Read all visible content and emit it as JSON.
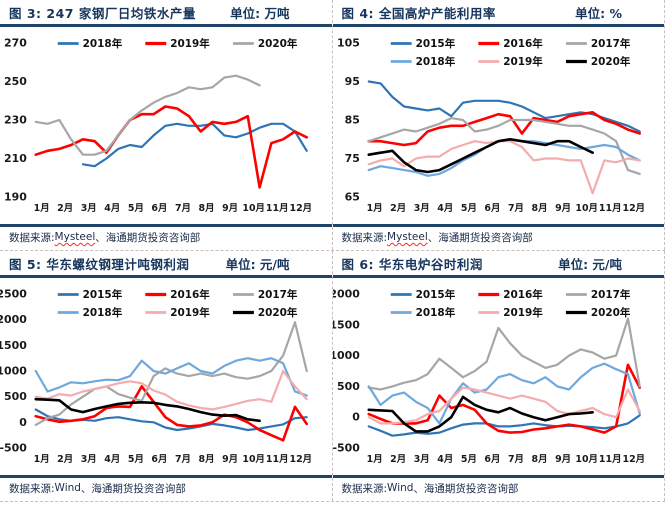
{
  "colors": {
    "navy_rule": "#1f4468",
    "title_text": "#17365d",
    "dashed_border": "#c9bdbd",
    "spellcheck_underline": "#ff2a2a",
    "year_2015": "#2e75b6",
    "year_2016": "#ff0000",
    "year_2017": "#a6a6a6",
    "year_2018_light": "#6fa8dc",
    "year_2019_pink": "#f4acac",
    "year_2020_black": "#000000"
  },
  "chart_data": [
    {
      "type": "line",
      "title": "图 3: 247 家钢厂日均铁水产量",
      "unit": "单位: 万吨",
      "source_prefix": "数据来源: ",
      "source_brand": "Mysteel",
      "source_suffix": "、海通期货投资咨询部",
      "brand_misspelled": true,
      "categories": [
        "1月",
        "2月",
        "3月",
        "4月",
        "5月",
        "6月",
        "7月",
        "8月",
        "9月",
        "10月",
        "11月",
        "12月"
      ],
      "ylim": [
        190,
        270
      ],
      "yticks": [
        270,
        250,
        230,
        210,
        190
      ],
      "grid": false,
      "legend_position": "top-inside",
      "series": [
        {
          "name": "2018年",
          "color": "#2e75b6",
          "width": 2.2,
          "values": [
            null,
            null,
            null,
            null,
            207,
            206,
            210,
            215,
            217,
            216,
            222,
            227,
            228,
            227,
            227,
            228,
            222,
            221,
            223,
            226,
            228,
            228,
            224,
            214
          ]
        },
        {
          "name": "2019年",
          "color": "#ff0000",
          "width": 2.6,
          "values": [
            212,
            214,
            215,
            217,
            220,
            219,
            213,
            222,
            230,
            233,
            233,
            237,
            236,
            232,
            224,
            229,
            228,
            229,
            232,
            195,
            218,
            220,
            224,
            221
          ]
        },
        {
          "name": "2020年",
          "color": "#a6a6a6",
          "width": 2.2,
          "values": [
            229,
            228,
            230,
            220,
            212,
            212,
            214,
            222,
            230,
            235,
            239,
            242,
            244,
            247,
            246,
            247,
            252,
            253,
            251,
            248,
            null,
            null,
            null,
            null
          ]
        }
      ]
    },
    {
      "type": "line",
      "title": "图 4: 全国高炉产能利用率",
      "unit": "单位: %",
      "source_prefix": "数据来源: ",
      "source_brand": "Mysteel",
      "source_suffix": "、海通期货投资咨询部",
      "brand_misspelled": true,
      "categories": [
        "1月",
        "2月",
        "3月",
        "4月",
        "5月",
        "6月",
        "7月",
        "8月",
        "9月",
        "10月",
        "11月",
        "12月"
      ],
      "ylim": [
        65,
        105
      ],
      "yticks": [
        105,
        95,
        85,
        75,
        65
      ],
      "grid": false,
      "legend_position": "top-inside",
      "series": [
        {
          "name": "2015年",
          "color": "#2e75b6",
          "width": 2.2,
          "values": [
            95,
            94.5,
            91,
            88.5,
            88,
            87.5,
            88,
            86,
            89.5,
            90,
            90,
            90,
            89.5,
            88.5,
            87,
            85.5,
            86,
            86.5,
            87,
            86.5,
            85.5,
            84.5,
            83.5,
            82
          ]
        },
        {
          "name": "2016年",
          "color": "#ff0000",
          "width": 2.6,
          "values": [
            79.5,
            79.5,
            79,
            78.5,
            79,
            82,
            83,
            83.5,
            83.5,
            84.5,
            85.5,
            86.5,
            86,
            81.5,
            85.5,
            85,
            84.5,
            86,
            86.5,
            87,
            85,
            84,
            82.5,
            81.5
          ]
        },
        {
          "name": "2017年",
          "color": "#a6a6a6",
          "width": 2.2,
          "values": [
            79.5,
            80.5,
            81.5,
            82.5,
            82,
            83,
            84,
            85.5,
            85,
            82,
            82.5,
            83.5,
            85,
            85,
            85,
            84.5,
            84,
            83.5,
            83.5,
            82.5,
            81.5,
            79.5,
            72,
            71
          ]
        },
        {
          "name": "2018年",
          "color": "#6fa8dc",
          "width": 2.2,
          "values": [
            72,
            73,
            72.5,
            72,
            71.5,
            70.5,
            71,
            72.5,
            74.5,
            76,
            78,
            79.5,
            80,
            79.5,
            79.5,
            79,
            78.5,
            78,
            77.5,
            78,
            78.5,
            78,
            76,
            74.5
          ]
        },
        {
          "name": "2019年",
          "color": "#f4acac",
          "width": 2.2,
          "values": [
            73.5,
            74.5,
            75,
            73,
            75,
            75.5,
            75.5,
            77.5,
            78.5,
            79.5,
            79,
            79.5,
            79.5,
            78,
            74.5,
            75,
            75,
            74.5,
            74.5,
            66,
            74.5,
            74,
            75,
            74.5
          ]
        },
        {
          "name": "2020年",
          "color": "#000000",
          "width": 2.6,
          "values": [
            76,
            76.5,
            77,
            74,
            72,
            71.5,
            72,
            73.5,
            75,
            76.5,
            78,
            79.5,
            80,
            79.5,
            79,
            78.5,
            79.5,
            79.5,
            78,
            76.5,
            null,
            null,
            null,
            null
          ]
        }
      ]
    },
    {
      "type": "line",
      "title": "图 5: 华东螺纹钢理计吨钢利润",
      "unit": "单位: 元/吨",
      "source_prefix": "数据来源: ",
      "source_brand": "Wind",
      "source_suffix": "、海通期货投资咨询部",
      "brand_misspelled": false,
      "categories": [
        "1月",
        "2月",
        "3月",
        "4月",
        "5月",
        "6月",
        "7月",
        "8月",
        "9月",
        "10月",
        "11月",
        "12月"
      ],
      "ylim": [
        -500,
        2500
      ],
      "yticks": [
        2500,
        2000,
        1500,
        1000,
        500,
        0,
        -500
      ],
      "grid": false,
      "legend_position": "top-inside",
      "series": [
        {
          "name": "2015年",
          "color": "#2e75b6",
          "width": 2.2,
          "values": [
            250,
            120,
            60,
            30,
            50,
            30,
            80,
            100,
            60,
            20,
            0,
            -100,
            -150,
            -120,
            -80,
            -30,
            -60,
            -100,
            -150,
            -120,
            -80,
            -40,
            80,
            100
          ]
        },
        {
          "name": "2016年",
          "color": "#ff0000",
          "width": 2.6,
          "values": [
            120,
            60,
            10,
            30,
            60,
            120,
            280,
            310,
            300,
            700,
            400,
            100,
            -50,
            -80,
            -60,
            0,
            150,
            100,
            0,
            -150,
            -250,
            -350,
            300,
            -30
          ]
        },
        {
          "name": "2017年",
          "color": "#a6a6a6",
          "width": 2.2,
          "values": [
            -50,
            80,
            150,
            350,
            500,
            650,
            700,
            550,
            480,
            420,
            900,
            1050,
            950,
            900,
            950,
            900,
            950,
            880,
            850,
            900,
            1000,
            1300,
            1950,
            1000
          ]
        },
        {
          "name": "2018年",
          "color": "#6fa8dc",
          "width": 2.2,
          "values": [
            1000,
            600,
            680,
            780,
            760,
            800,
            830,
            820,
            900,
            1200,
            1000,
            950,
            1050,
            1150,
            1000,
            950,
            1100,
            1200,
            1250,
            1200,
            1250,
            1150,
            600,
            520
          ]
        },
        {
          "name": "2019年",
          "color": "#f4acac",
          "width": 2.2,
          "values": [
            500,
            460,
            550,
            520,
            600,
            650,
            700,
            760,
            800,
            760,
            620,
            540,
            400,
            330,
            280,
            250,
            300,
            360,
            420,
            450,
            400,
            1000,
            700,
            450
          ]
        },
        {
          "name": "2020年",
          "color": "#000000",
          "width": 2.6,
          "values": [
            450,
            440,
            430,
            250,
            200,
            260,
            310,
            360,
            380,
            390,
            380,
            340,
            310,
            260,
            200,
            150,
            130,
            140,
            60,
            30,
            null,
            null,
            null,
            null
          ]
        }
      ]
    },
    {
      "type": "line",
      "title": "图 6: 华东电炉谷时利润",
      "unit": "单位: 元/吨",
      "source_prefix": "数据来源: ",
      "source_brand": "Wind",
      "source_suffix": "、海通期货投资咨询部",
      "brand_misspelled": false,
      "categories": [
        "1月",
        "2月",
        "3月",
        "4月",
        "5月",
        "6月",
        "7月",
        "8月",
        "9月",
        "10月",
        "11月",
        "12月"
      ],
      "ylim": [
        -500,
        2000
      ],
      "yticks": [
        2000,
        1500,
        1000,
        500,
        0,
        -500
      ],
      "grid": false,
      "legend_position": "top-inside",
      "series": [
        {
          "name": "2015年",
          "color": "#2e75b6",
          "width": 2.2,
          "values": [
            -150,
            -220,
            -300,
            -280,
            -250,
            -270,
            -250,
            -180,
            -120,
            -100,
            -100,
            -150,
            -150,
            -130,
            -100,
            -130,
            -150,
            -140,
            -150,
            -160,
            -180,
            -150,
            -100,
            30
          ]
        },
        {
          "name": "2016年",
          "color": "#ff0000",
          "width": 2.6,
          "values": [
            50,
            -30,
            -100,
            -100,
            -100,
            -50,
            350,
            150,
            200,
            120,
            -100,
            -220,
            -250,
            -240,
            -200,
            -180,
            -150,
            -120,
            -150,
            -200,
            -250,
            -150,
            850,
            480
          ]
        },
        {
          "name": "2017年",
          "color": "#a6a6a6",
          "width": 2.2,
          "values": [
            480,
            450,
            500,
            560,
            600,
            700,
            950,
            800,
            650,
            750,
            900,
            1450,
            1200,
            1000,
            900,
            800,
            850,
            1000,
            1100,
            1050,
            950,
            1000,
            1600,
            500
          ]
        },
        {
          "name": "2018年",
          "color": "#6fa8dc",
          "width": 2.2,
          "values": [
            500,
            200,
            350,
            400,
            250,
            150,
            -100,
            300,
            550,
            400,
            450,
            650,
            700,
            600,
            550,
            650,
            500,
            450,
            650,
            800,
            870,
            780,
            700,
            60
          ]
        },
        {
          "name": "2019年",
          "color": "#f4acac",
          "width": 2.2,
          "values": [
            0,
            -100,
            -100,
            -80,
            -50,
            50,
            100,
            300,
            480,
            450,
            400,
            350,
            300,
            350,
            300,
            250,
            100,
            50,
            100,
            150,
            50,
            0,
            450,
            100
          ]
        },
        {
          "name": "2020年",
          "color": "#000000",
          "width": 2.6,
          "values": [
            120,
            110,
            100,
            -100,
            -230,
            -230,
            -150,
            0,
            330,
            200,
            120,
            80,
            150,
            60,
            0,
            -50,
            0,
            50,
            60,
            80,
            null,
            null,
            null,
            null
          ]
        }
      ]
    }
  ]
}
